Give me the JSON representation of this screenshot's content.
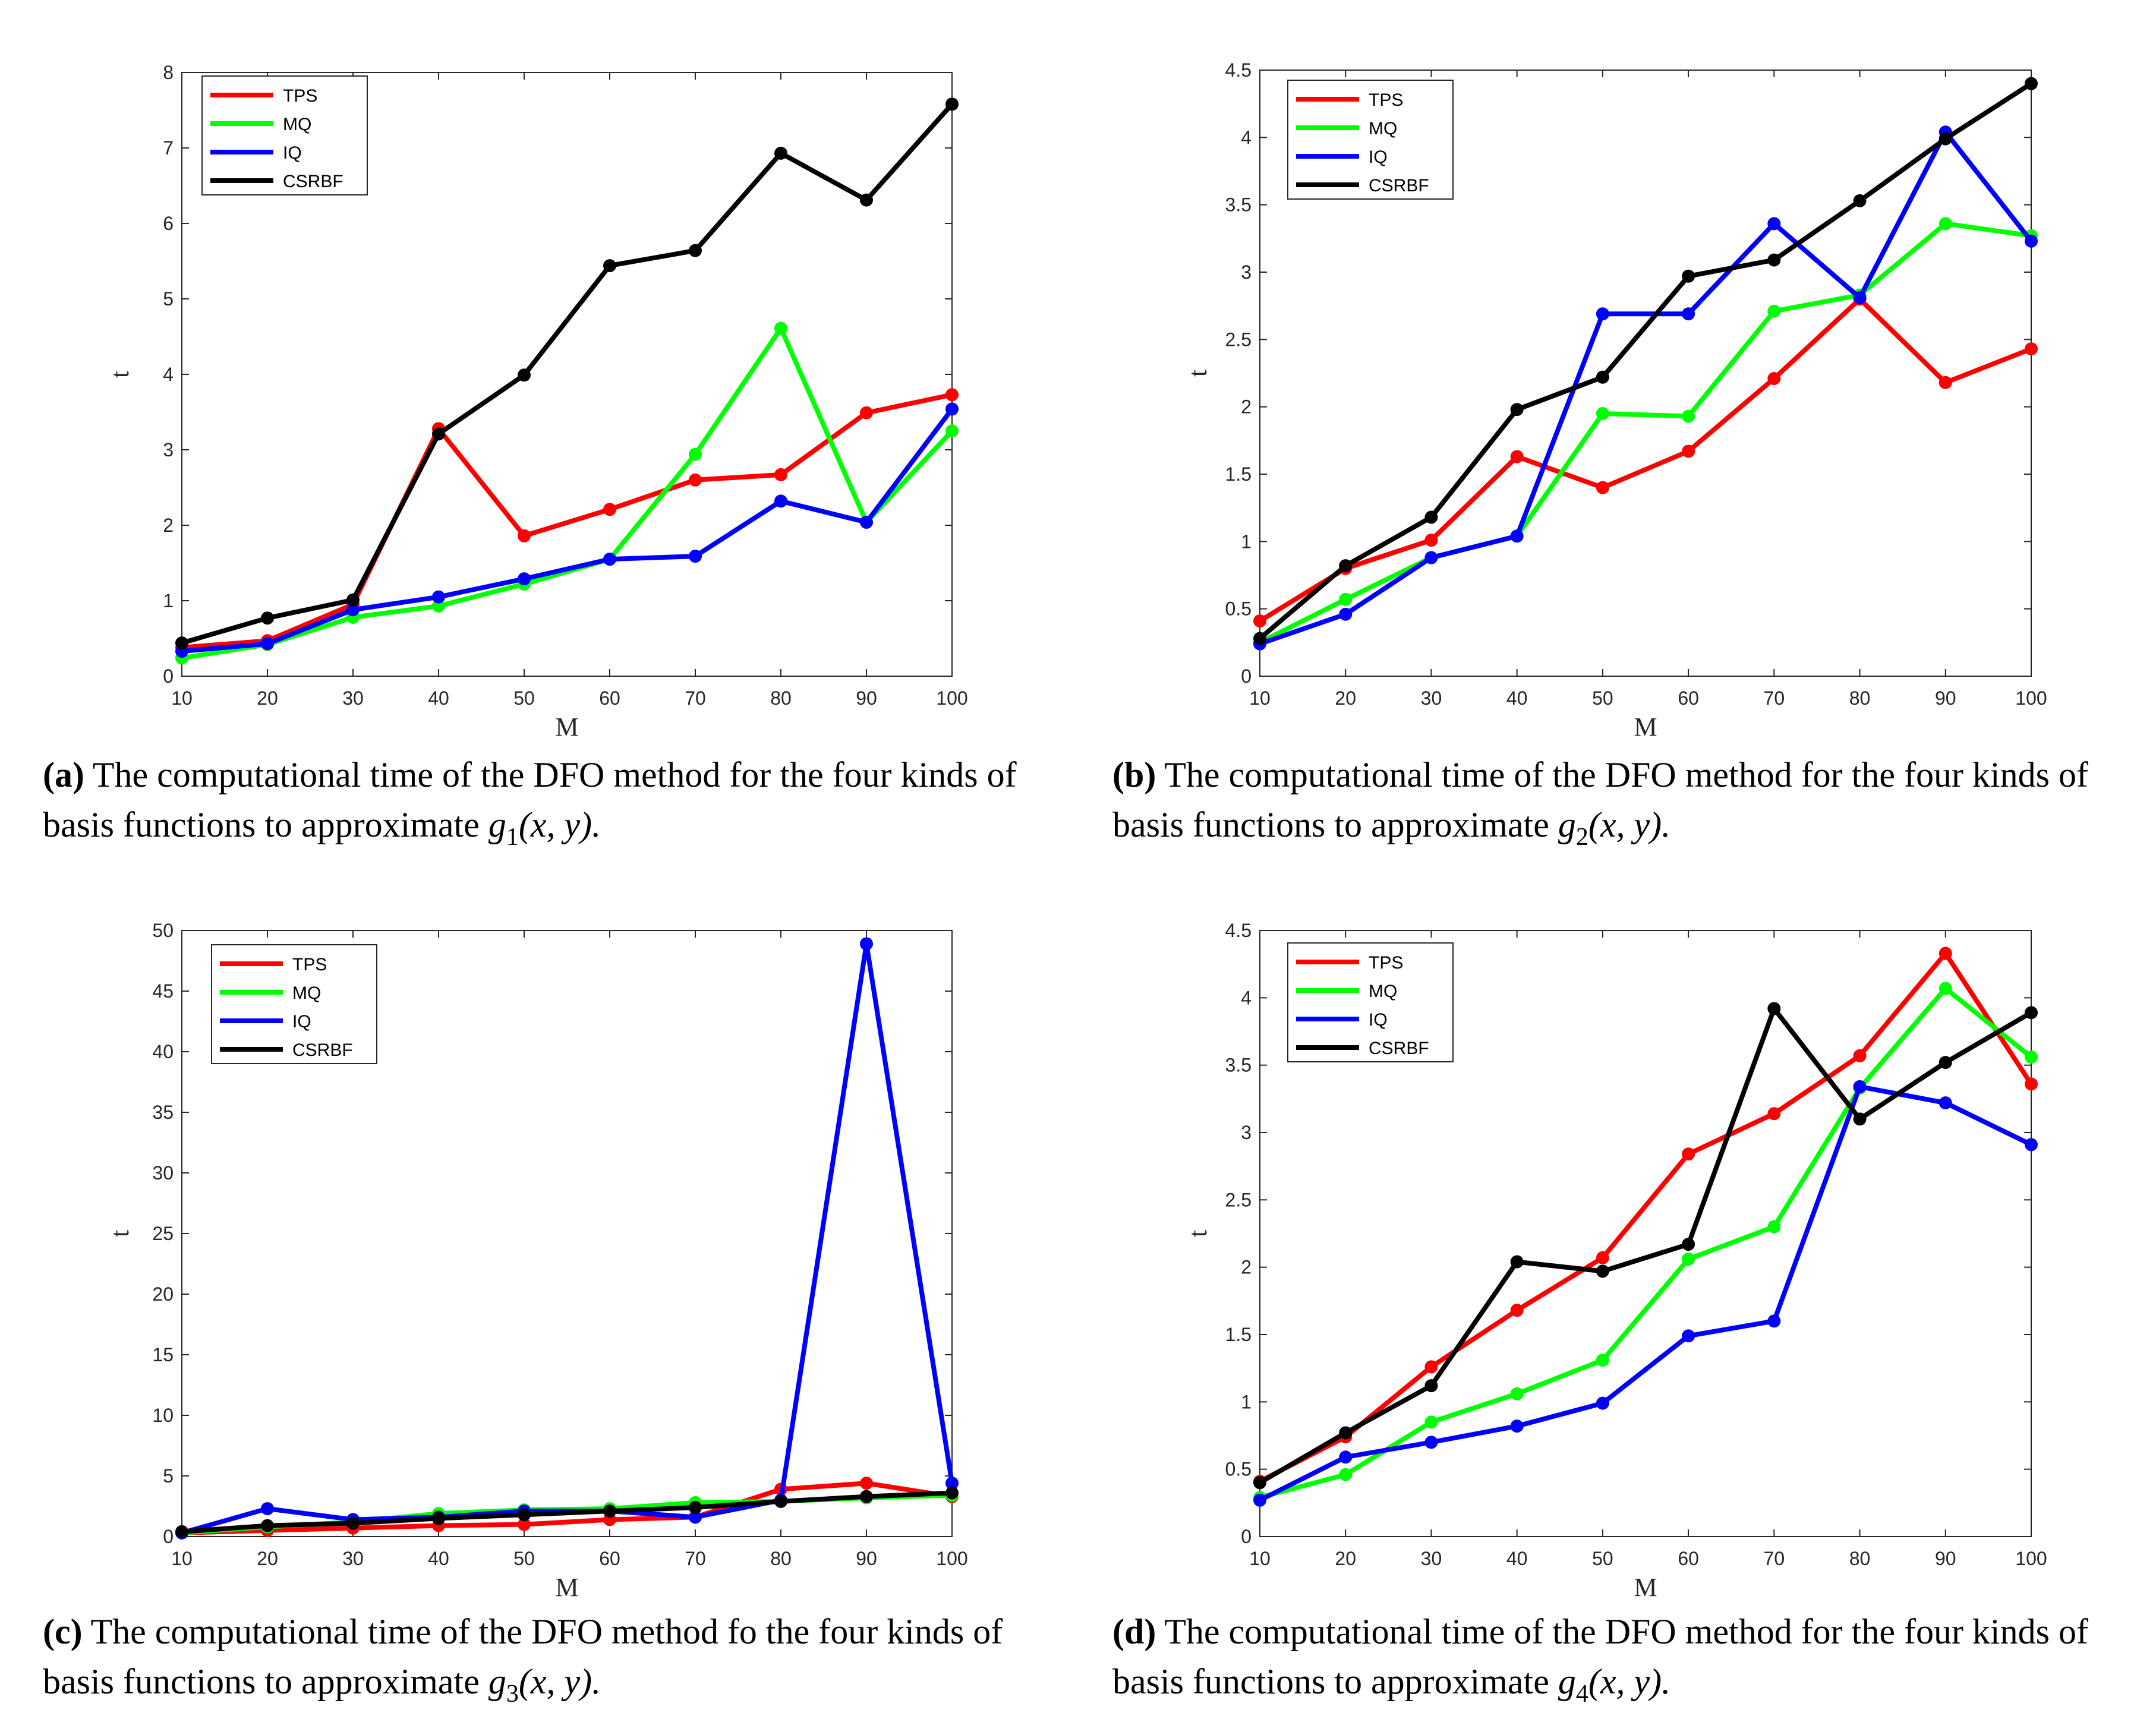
{
  "colors": {
    "TPS": "#ff0000",
    "MQ": "#00ff00",
    "IQ": "#0000ff",
    "CSRBF": "#000000"
  },
  "legend": [
    "TPS",
    "MQ",
    "IQ",
    "CSRBF"
  ],
  "chart_data": [
    {
      "id": "a",
      "type": "line",
      "xlabel": "M",
      "ylabel": "t",
      "x": [
        10,
        20,
        30,
        40,
        50,
        60,
        70,
        80,
        90,
        100
      ],
      "xlim": [
        10,
        100
      ],
      "ylim": [
        0,
        8
      ],
      "xticks": [
        10,
        20,
        30,
        40,
        50,
        60,
        70,
        80,
        90,
        100
      ],
      "yticks": [
        0,
        1,
        2,
        3,
        4,
        5,
        6,
        7,
        8
      ],
      "series": [
        {
          "name": "TPS",
          "values": [
            0.38,
            0.47,
            0.95,
            3.28,
            1.86,
            2.21,
            2.6,
            2.67,
            3.49,
            3.73
          ]
        },
        {
          "name": "MQ",
          "values": [
            0.24,
            0.42,
            0.78,
            0.93,
            1.22,
            1.55,
            2.94,
            4.61,
            2.04,
            3.25
          ]
        },
        {
          "name": "IQ",
          "values": [
            0.33,
            0.43,
            0.88,
            1.05,
            1.29,
            1.55,
            1.59,
            2.32,
            2.04,
            3.54
          ]
        },
        {
          "name": "CSRBF",
          "values": [
            0.44,
            0.77,
            1.01,
            3.21,
            3.99,
            5.44,
            5.64,
            6.93,
            6.31,
            7.58
          ]
        }
      ]
    },
    {
      "id": "b",
      "type": "line",
      "xlabel": "M",
      "ylabel": "t",
      "x": [
        10,
        20,
        30,
        40,
        50,
        60,
        70,
        80,
        90,
        100
      ],
      "xlim": [
        10,
        100
      ],
      "ylim": [
        0,
        4.5
      ],
      "xticks": [
        10,
        20,
        30,
        40,
        50,
        60,
        70,
        80,
        90,
        100
      ],
      "yticks": [
        0,
        0.5,
        1,
        1.5,
        2,
        2.5,
        3,
        3.5,
        4,
        4.5
      ],
      "series": [
        {
          "name": "TPS",
          "values": [
            0.41,
            0.8,
            1.01,
            1.63,
            1.4,
            1.67,
            2.21,
            2.8,
            2.18,
            2.43
          ]
        },
        {
          "name": "MQ",
          "values": [
            0.25,
            0.57,
            0.88,
            1.04,
            1.95,
            1.93,
            2.71,
            2.83,
            3.36,
            3.27
          ]
        },
        {
          "name": "IQ",
          "values": [
            0.24,
            0.46,
            0.88,
            1.04,
            2.69,
            2.69,
            3.36,
            2.81,
            4.04,
            3.23
          ]
        },
        {
          "name": "CSRBF",
          "values": [
            0.28,
            0.82,
            1.18,
            1.98,
            2.22,
            2.97,
            3.09,
            3.53,
            3.99,
            4.4
          ]
        }
      ]
    },
    {
      "id": "c",
      "type": "line",
      "xlabel": "M",
      "ylabel": "t",
      "x": [
        10,
        20,
        30,
        40,
        50,
        60,
        70,
        80,
        90,
        100
      ],
      "xlim": [
        10,
        100
      ],
      "ylim": [
        0,
        50
      ],
      "xticks": [
        10,
        20,
        30,
        40,
        50,
        60,
        70,
        80,
        90,
        100
      ],
      "yticks": [
        0,
        5,
        10,
        15,
        20,
        25,
        30,
        35,
        40,
        45,
        50
      ],
      "series": [
        {
          "name": "TPS",
          "values": [
            0.3,
            0.5,
            0.7,
            0.9,
            1.0,
            1.4,
            1.6,
            3.9,
            4.4,
            3.3
          ]
        },
        {
          "name": "MQ",
          "values": [
            0.3,
            0.8,
            1.2,
            1.9,
            2.2,
            2.3,
            2.8,
            2.9,
            3.2,
            3.4
          ]
        },
        {
          "name": "IQ",
          "values": [
            0.3,
            2.3,
            1.4,
            1.6,
            2.1,
            2.1,
            1.6,
            3.0,
            48.9,
            4.4
          ]
        },
        {
          "name": "CSRBF",
          "values": [
            0.4,
            0.9,
            1.1,
            1.5,
            1.8,
            2.1,
            2.4,
            2.9,
            3.3,
            3.6
          ]
        }
      ]
    },
    {
      "id": "d",
      "type": "line",
      "xlabel": "M",
      "ylabel": "t",
      "x": [
        10,
        20,
        30,
        40,
        50,
        60,
        70,
        80,
        90,
        100
      ],
      "xlim": [
        10,
        100
      ],
      "ylim": [
        0,
        4.5
      ],
      "xticks": [
        10,
        20,
        30,
        40,
        50,
        60,
        70,
        80,
        90,
        100
      ],
      "yticks": [
        0,
        0.5,
        1,
        1.5,
        2,
        2.5,
        3,
        3.5,
        4,
        4.5
      ],
      "series": [
        {
          "name": "TPS",
          "values": [
            0.41,
            0.74,
            1.26,
            1.68,
            2.07,
            2.84,
            3.14,
            3.57,
            4.33,
            3.36
          ]
        },
        {
          "name": "MQ",
          "values": [
            0.29,
            0.46,
            0.85,
            1.06,
            1.31,
            2.06,
            2.3,
            3.33,
            4.07,
            3.56
          ]
        },
        {
          "name": "IQ",
          "values": [
            0.27,
            0.59,
            0.7,
            0.82,
            0.99,
            1.49,
            1.6,
            3.34,
            3.22,
            2.91
          ]
        },
        {
          "name": "CSRBF",
          "values": [
            0.4,
            0.77,
            1.12,
            2.04,
            1.97,
            2.17,
            3.92,
            3.1,
            3.52,
            3.89
          ]
        }
      ]
    }
  ],
  "captions": {
    "a": {
      "label": "(a)",
      "text": " The computational time of the DFO method for the four kinds of basis functions to approximate ",
      "fn": "g",
      "sub": "1",
      "args": "(x, y)."
    },
    "b": {
      "label": "(b)",
      "text": " The computational time of the DFO method for the four kinds of basis functions to approximate ",
      "fn": "g",
      "sub": "2",
      "args": "(x, y)."
    },
    "c": {
      "label": "(c)",
      "text": " The computational time of the DFO method fo the four kinds of basis functions to approximate ",
      "fn": "g",
      "sub": "3",
      "args": "(x, y)."
    },
    "d": {
      "label": "(d)",
      "text": " The computational time of the DFO method for the four kinds of basis functions to approximate ",
      "fn": "g",
      "sub": "4",
      "args": "(x, y)."
    }
  }
}
